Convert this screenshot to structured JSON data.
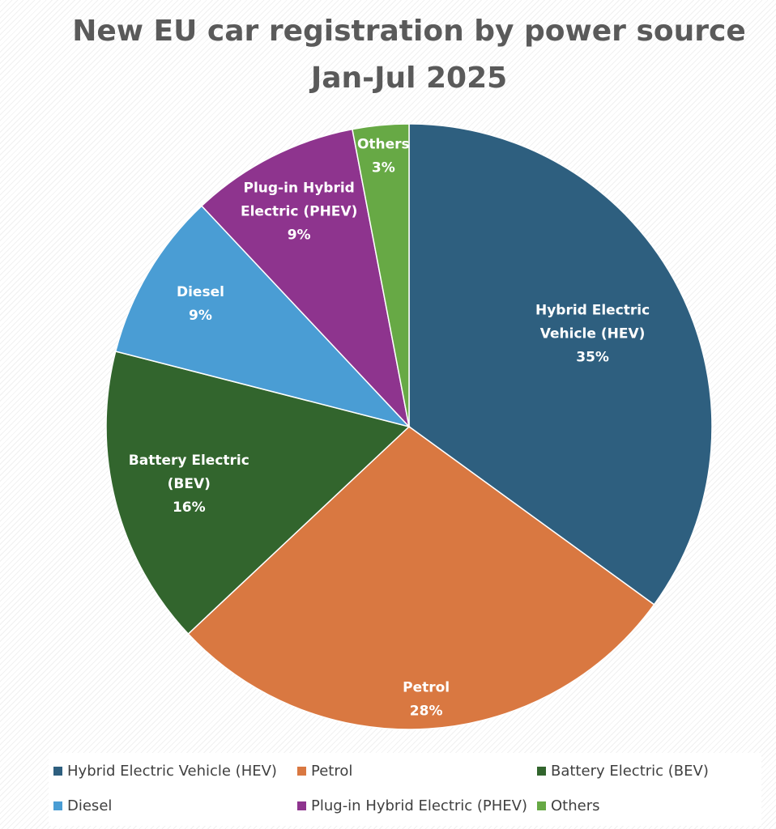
{
  "chart_data": {
    "type": "pie",
    "title": [
      "New EU car registration by power source",
      "Jan-Jul 2025"
    ],
    "slices": [
      {
        "label": "Hybrid Electric Vehicle (HEV)",
        "label_lines": [
          "Hybrid Electric",
          "Vehicle (HEV)"
        ],
        "value": 35,
        "value_label": "35%",
        "color": "#2e5f7f"
      },
      {
        "label": "Petrol",
        "label_lines": [
          "Petrol"
        ],
        "value": 28,
        "value_label": "28%",
        "color": "#d97841"
      },
      {
        "label": "Battery Electric (BEV)",
        "label_lines": [
          "Battery Electric",
          "(BEV)"
        ],
        "value": 16,
        "value_label": "16%",
        "color": "#32652d"
      },
      {
        "label": "Diesel",
        "label_lines": [
          "Diesel"
        ],
        "value": 9,
        "value_label": "9%",
        "color": "#4a9dd4"
      },
      {
        "label": "Plug-in Hybrid Electric (PHEV)",
        "label_lines": [
          "Plug-in Hybrid",
          "Electric (PHEV)"
        ],
        "value": 9,
        "value_label": "9%",
        "color": "#8e348e"
      },
      {
        "label": "Others",
        "label_lines": [
          "Others"
        ],
        "value": 3,
        "value_label": "3%",
        "color": "#67a945"
      }
    ],
    "legend": {
      "position": "bottom"
    }
  }
}
